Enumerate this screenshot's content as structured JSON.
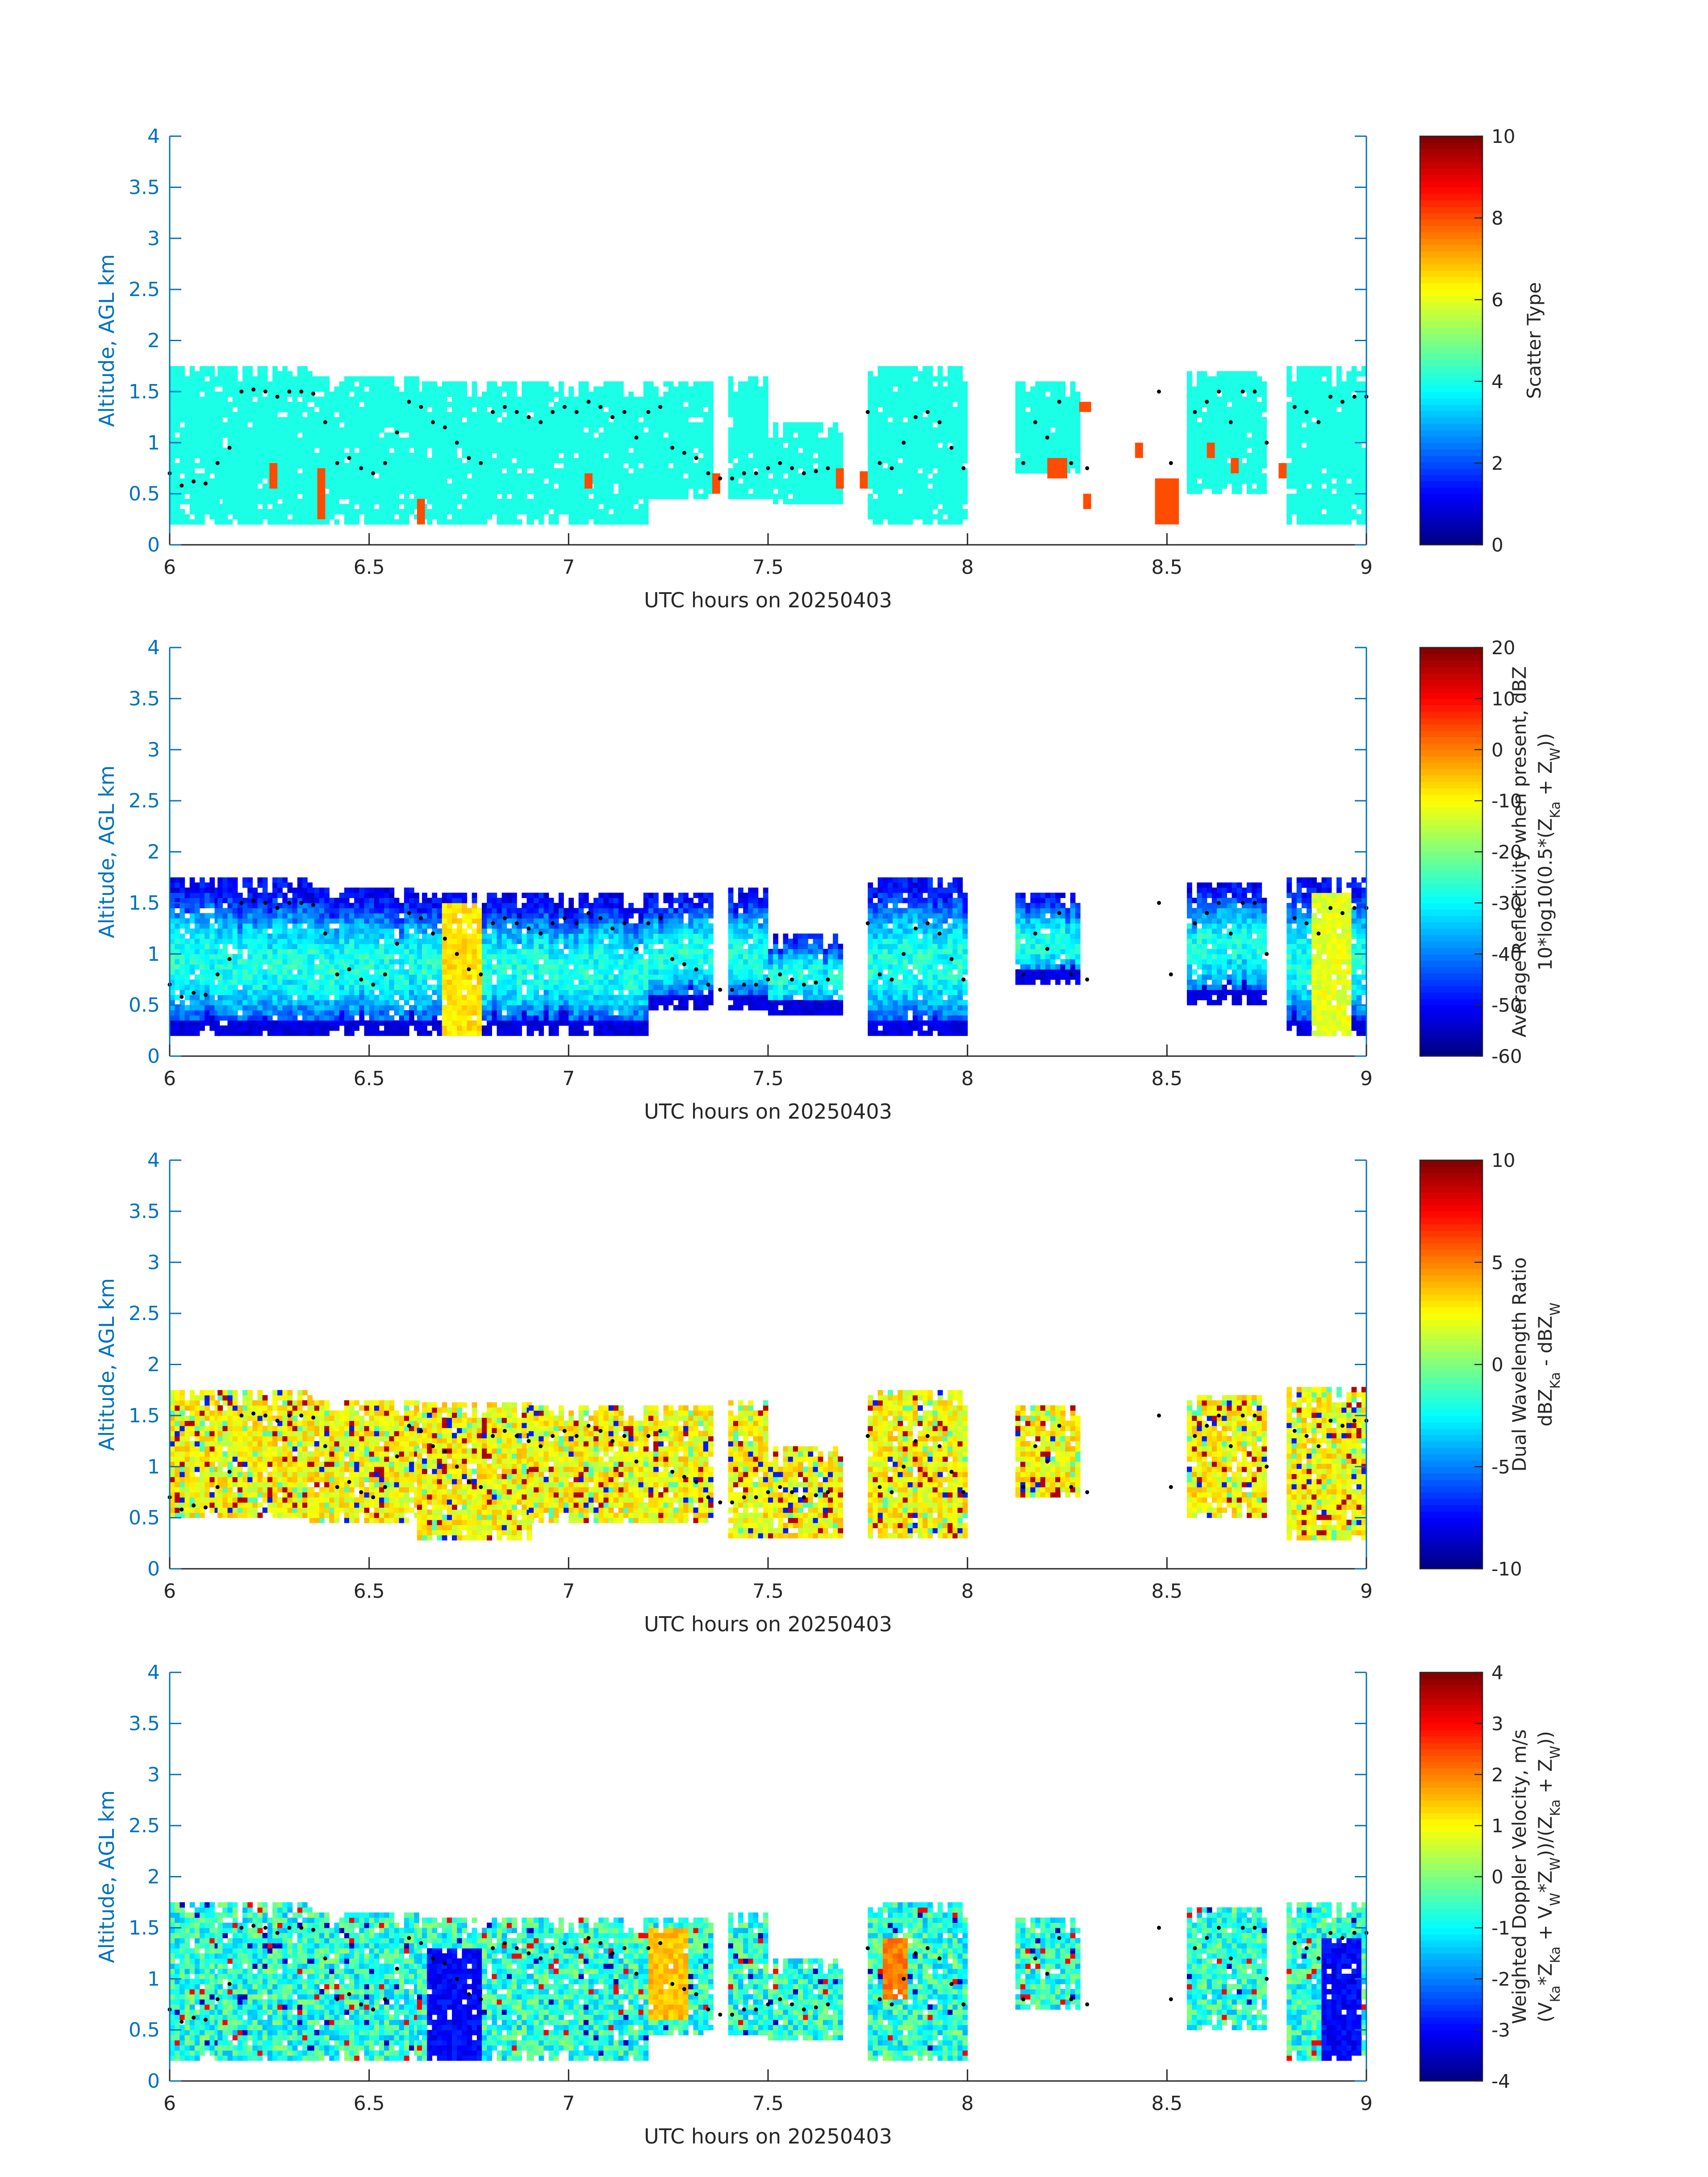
{
  "figure": {
    "date_label": "UTC hours on 20250403"
  },
  "chart_data": [
    {
      "type": "heatmap",
      "title": "",
      "xlabel": "UTC hours on 20250403",
      "ylabel": "Altitude, AGL km",
      "xlim": [
        6,
        9
      ],
      "ylim": [
        0,
        4
      ],
      "xticks": [
        "6",
        "6.5",
        "7",
        "7.5",
        "8",
        "8.5",
        "9"
      ],
      "yticks": [
        "0",
        "0.5",
        "1",
        "1.5",
        "2",
        "2.5",
        "3",
        "3.5",
        "4"
      ],
      "colorbar": {
        "label_lines": [
          "Scatter Type"
        ],
        "limits": [
          0,
          10
        ],
        "ticks": [
          "0",
          "2",
          "4",
          "6",
          "8",
          "10"
        ],
        "colormap": "jet"
      },
      "value_description": "Dominant scatter type 4 (cyan) throughout echo; type ~8 (red) in isolated lower cells",
      "echo_segments": [
        {
          "x": [
            6.0,
            6.12
          ],
          "base": 0.2,
          "top": 1.75
        },
        {
          "x": [
            6.12,
            6.35
          ],
          "base": 0.2,
          "top": 1.72
        },
        {
          "x": [
            6.35,
            6.62
          ],
          "base": 0.2,
          "top": 1.65
        },
        {
          "x": [
            6.62,
            6.9
          ],
          "base": 0.2,
          "top": 1.6
        },
        {
          "x": [
            6.9,
            7.2
          ],
          "base": 0.2,
          "top": 1.6
        },
        {
          "x": [
            7.2,
            7.36
          ],
          "base": 0.45,
          "top": 1.6
        },
        {
          "x": [
            7.4,
            7.5
          ],
          "base": 0.45,
          "top": 1.65
        },
        {
          "x": [
            7.5,
            7.68
          ],
          "base": 0.4,
          "top": 1.2
        },
        {
          "x": [
            7.75,
            8.0
          ],
          "base": 0.2,
          "top": 1.75
        },
        {
          "x": [
            8.12,
            8.28
          ],
          "base": 0.7,
          "top": 1.6
        },
        {
          "x": [
            8.55,
            8.75
          ],
          "base": 0.5,
          "top": 1.7
        },
        {
          "x": [
            8.8,
            9.0
          ],
          "base": 0.2,
          "top": 1.75
        }
      ],
      "secondary_cells": [
        {
          "x": [
            6.25,
            6.27
          ],
          "y": [
            0.55,
            0.8
          ],
          "value": 8
        },
        {
          "x": [
            6.37,
            6.39
          ],
          "y": [
            0.25,
            0.75
          ],
          "value": 8
        },
        {
          "x": [
            6.62,
            6.64
          ],
          "y": [
            0.2,
            0.45
          ],
          "value": 8
        },
        {
          "x": [
            7.04,
            7.06
          ],
          "y": [
            0.55,
            0.7
          ],
          "value": 8
        },
        {
          "x": [
            7.36,
            7.38
          ],
          "y": [
            0.5,
            0.7
          ],
          "value": 8
        },
        {
          "x": [
            7.67,
            7.69
          ],
          "y": [
            0.55,
            0.75
          ],
          "value": 8
        },
        {
          "x": [
            7.73,
            7.75
          ],
          "y": [
            0.55,
            0.72
          ],
          "value": 8
        },
        {
          "x": [
            8.2,
            8.25
          ],
          "y": [
            0.65,
            0.85
          ],
          "value": 8
        },
        {
          "x": [
            8.28,
            8.31
          ],
          "y": [
            1.3,
            1.4
          ],
          "value": 8
        },
        {
          "x": [
            8.29,
            8.31
          ],
          "y": [
            0.35,
            0.5
          ],
          "value": 8
        },
        {
          "x": [
            8.42,
            8.44
          ],
          "y": [
            0.85,
            1.0
          ],
          "value": 8
        },
        {
          "x": [
            8.47,
            8.53
          ],
          "y": [
            0.2,
            0.65
          ],
          "value": 8
        },
        {
          "x": [
            8.6,
            8.62
          ],
          "y": [
            0.85,
            1.0
          ],
          "value": 8
        },
        {
          "x": [
            8.66,
            8.68
          ],
          "y": [
            0.7,
            0.85
          ],
          "value": 8
        },
        {
          "x": [
            8.78,
            8.8
          ],
          "y": [
            0.65,
            0.8
          ],
          "value": 8
        }
      ]
    },
    {
      "type": "heatmap",
      "title": "",
      "xlabel": "UTC hours on 20250403",
      "ylabel": "Altitude, AGL km",
      "xlim": [
        6,
        9
      ],
      "ylim": [
        0,
        4
      ],
      "xticks": [
        "6",
        "6.5",
        "7",
        "7.5",
        "8",
        "8.5",
        "9"
      ],
      "yticks": [
        "0",
        "0.5",
        "1",
        "1.5",
        "2",
        "2.5",
        "3",
        "3.5",
        "4"
      ],
      "colorbar": {
        "label_lines": [
          "Average Reflectivity when present, dBZ",
          "10*log10(0.5*(Z",
          "Ka",
          " + Z",
          "W",
          "))"
        ],
        "limits": [
          -60,
          20
        ],
        "ticks": [
          "-60",
          "-50",
          "-40",
          "-30",
          "-20",
          "-10",
          "0",
          "10",
          "20"
        ],
        "colormap": "jet"
      },
      "value_description": "Reflectivity mostly -50 to -25 dBZ, peaks near -5 dBZ around 6.72 and 8.9 h",
      "echo_segments": [
        {
          "x": [
            6.0,
            6.12
          ],
          "base": 0.2,
          "top": 1.75
        },
        {
          "x": [
            6.12,
            6.35
          ],
          "base": 0.2,
          "top": 1.72
        },
        {
          "x": [
            6.35,
            6.62
          ],
          "base": 0.2,
          "top": 1.65
        },
        {
          "x": [
            6.62,
            6.9
          ],
          "base": 0.2,
          "top": 1.6
        },
        {
          "x": [
            6.9,
            7.2
          ],
          "base": 0.2,
          "top": 1.6
        },
        {
          "x": [
            7.2,
            7.36
          ],
          "base": 0.45,
          "top": 1.6
        },
        {
          "x": [
            7.4,
            7.5
          ],
          "base": 0.45,
          "top": 1.65
        },
        {
          "x": [
            7.5,
            7.68
          ],
          "base": 0.4,
          "top": 1.2
        },
        {
          "x": [
            7.75,
            8.0
          ],
          "base": 0.2,
          "top": 1.75
        },
        {
          "x": [
            8.12,
            8.28
          ],
          "base": 0.7,
          "top": 1.6
        },
        {
          "x": [
            8.55,
            8.75
          ],
          "base": 0.5,
          "top": 1.7
        },
        {
          "x": [
            8.8,
            9.0
          ],
          "base": 0.2,
          "top": 1.75
        }
      ],
      "hotspots": [
        {
          "x": [
            6.68,
            6.78
          ],
          "y": [
            0.2,
            1.5
          ],
          "value": -8
        },
        {
          "x": [
            8.85,
            8.95
          ],
          "y": [
            0.2,
            1.6
          ],
          "value": -12
        }
      ]
    },
    {
      "type": "heatmap",
      "title": "",
      "xlabel": "UTC hours on 20250403",
      "ylabel": "Altitude, AGL km",
      "xlim": [
        6,
        9
      ],
      "ylim": [
        0,
        4
      ],
      "xticks": [
        "6",
        "6.5",
        "7",
        "7.5",
        "8",
        "8.5",
        "9"
      ],
      "yticks": [
        "0",
        "0.5",
        "1",
        "1.5",
        "2",
        "2.5",
        "3",
        "3.5",
        "4"
      ],
      "colorbar": {
        "label_lines": [
          "Dual Wavelength Ratio",
          "dBZ",
          "Ka",
          " - dBZ",
          "W"
        ],
        "limits": [
          -10,
          10
        ],
        "ticks": [
          "-10",
          "-5",
          "0",
          "5",
          "10"
        ],
        "colormap": "jet"
      },
      "value_description": "DWR mostly 1 to 4 dB, scattered pixels to 8 dB and a few negative",
      "echo_segments": [
        {
          "x": [
            6.0,
            6.12
          ],
          "base": 0.5,
          "top": 1.75
        },
        {
          "x": [
            6.12,
            6.35
          ],
          "base": 0.5,
          "top": 1.72
        },
        {
          "x": [
            6.35,
            6.62
          ],
          "base": 0.45,
          "top": 1.65
        },
        {
          "x": [
            6.62,
            6.9
          ],
          "base": 0.28,
          "top": 1.6
        },
        {
          "x": [
            6.9,
            7.2
          ],
          "base": 0.45,
          "top": 1.6
        },
        {
          "x": [
            7.2,
            7.36
          ],
          "base": 0.45,
          "top": 1.6
        },
        {
          "x": [
            7.4,
            7.5
          ],
          "base": 0.3,
          "top": 1.65
        },
        {
          "x": [
            7.5,
            7.68
          ],
          "base": 0.3,
          "top": 1.2
        },
        {
          "x": [
            7.75,
            8.0
          ],
          "base": 0.3,
          "top": 1.75
        },
        {
          "x": [
            8.12,
            8.28
          ],
          "base": 0.7,
          "top": 1.6
        },
        {
          "x": [
            8.55,
            8.75
          ],
          "base": 0.5,
          "top": 1.7
        },
        {
          "x": [
            8.8,
            9.0
          ],
          "base": 0.28,
          "top": 1.75
        }
      ]
    },
    {
      "type": "heatmap",
      "title": "",
      "xlabel": "UTC hours on 20250403",
      "ylabel": "Altitude, AGL km",
      "xlim": [
        6,
        9
      ],
      "ylim": [
        0,
        4
      ],
      "xticks": [
        "6",
        "6.5",
        "7",
        "7.5",
        "8",
        "8.5",
        "9"
      ],
      "yticks": [
        "0",
        "0.5",
        "1",
        "1.5",
        "2",
        "2.5",
        "3",
        "3.5",
        "4"
      ],
      "colorbar": {
        "label_lines": [
          "Weighted Doppler Velocity, m/s",
          "(V",
          "Ka",
          "*Z",
          "Ka",
          " + V",
          "W",
          "*Z",
          "W",
          "))/(Z",
          "Ka",
          " + Z",
          "W",
          "))"
        ],
        "limits": [
          -4,
          4
        ],
        "ticks": [
          "-4",
          "-3",
          "-2",
          "-1",
          "0",
          "1",
          "2",
          "3",
          "4"
        ],
        "colormap": "jet"
      },
      "value_description": "Velocity mostly -1.5 to 0.5 m/s; strong downward (-3 m/s) columns near 6.62-6.78 and 8.88-8.98 h; upward pockets near 7.2 and 7.8 h",
      "echo_segments": [
        {
          "x": [
            6.0,
            6.12
          ],
          "base": 0.2,
          "top": 1.75
        },
        {
          "x": [
            6.12,
            6.35
          ],
          "base": 0.2,
          "top": 1.72
        },
        {
          "x": [
            6.35,
            6.62
          ],
          "base": 0.2,
          "top": 1.65
        },
        {
          "x": [
            6.62,
            6.9
          ],
          "base": 0.2,
          "top": 1.6
        },
        {
          "x": [
            6.9,
            7.2
          ],
          "base": 0.2,
          "top": 1.6
        },
        {
          "x": [
            7.2,
            7.36
          ],
          "base": 0.45,
          "top": 1.6
        },
        {
          "x": [
            7.4,
            7.5
          ],
          "base": 0.45,
          "top": 1.65
        },
        {
          "x": [
            7.5,
            7.68
          ],
          "base": 0.4,
          "top": 1.2
        },
        {
          "x": [
            7.75,
            8.0
          ],
          "base": 0.2,
          "top": 1.75
        },
        {
          "x": [
            8.12,
            8.28
          ],
          "base": 0.7,
          "top": 1.6
        },
        {
          "x": [
            8.55,
            8.75
          ],
          "base": 0.5,
          "top": 1.7
        },
        {
          "x": [
            8.8,
            9.0
          ],
          "base": 0.2,
          "top": 1.75
        }
      ],
      "hotspots": [
        {
          "x": [
            6.64,
            6.78
          ],
          "y": [
            0.2,
            1.3
          ],
          "value": -3
        },
        {
          "x": [
            8.88,
            8.98
          ],
          "y": [
            0.2,
            1.4
          ],
          "value": -3
        },
        {
          "x": [
            7.2,
            7.3
          ],
          "y": [
            0.6,
            1.5
          ],
          "value": 1.5
        },
        {
          "x": [
            7.78,
            7.85
          ],
          "y": [
            0.8,
            1.4
          ],
          "value": 2
        }
      ]
    }
  ],
  "overlay_points": {
    "description": "Black dot markers tracing a layer height",
    "x": [
      6.0,
      6.03,
      6.06,
      6.09,
      6.12,
      6.15,
      6.18,
      6.21,
      6.24,
      6.27,
      6.3,
      6.33,
      6.36,
      6.39,
      6.42,
      6.45,
      6.48,
      6.51,
      6.54,
      6.57,
      6.6,
      6.63,
      6.66,
      6.69,
      6.72,
      6.75,
      6.78,
      6.81,
      6.84,
      6.87,
      6.9,
      6.93,
      6.96,
      6.99,
      7.02,
      7.05,
      7.08,
      7.11,
      7.14,
      7.17,
      7.2,
      7.23,
      7.26,
      7.29,
      7.32,
      7.35,
      7.38,
      7.41,
      7.44,
      7.47,
      7.5,
      7.53,
      7.56,
      7.59,
      7.62,
      7.65,
      7.75,
      7.78,
      7.81,
      7.84,
      7.87,
      7.9,
      7.93,
      7.96,
      7.99,
      8.14,
      8.17,
      8.2,
      8.23,
      8.26,
      8.3,
      8.48,
      8.51,
      8.57,
      8.6,
      8.63,
      8.66,
      8.69,
      8.72,
      8.75,
      8.82,
      8.85,
      8.88,
      8.91,
      8.94,
      8.97,
      9.0
    ],
    "y": [
      0.7,
      0.58,
      0.62,
      0.6,
      0.8,
      0.95,
      1.5,
      1.52,
      1.5,
      1.45,
      1.5,
      1.5,
      1.48,
      1.2,
      0.8,
      0.85,
      0.75,
      0.7,
      0.8,
      1.1,
      1.4,
      1.35,
      1.2,
      1.15,
      1.0,
      0.85,
      0.8,
      1.3,
      1.35,
      1.3,
      1.25,
      1.2,
      1.3,
      1.35,
      1.3,
      1.4,
      1.35,
      1.25,
      1.3,
      1.05,
      1.3,
      1.35,
      0.95,
      0.9,
      0.85,
      0.7,
      0.65,
      0.65,
      0.7,
      0.7,
      0.75,
      0.8,
      0.75,
      0.7,
      0.72,
      0.75,
      1.3,
      0.8,
      0.75,
      1.0,
      1.25,
      1.3,
      1.2,
      0.95,
      0.75,
      0.8,
      1.2,
      1.05,
      1.4,
      0.8,
      0.75,
      1.5,
      0.8,
      1.3,
      1.4,
      1.5,
      1.2,
      1.5,
      1.5,
      1.0,
      1.35,
      1.3,
      1.2,
      1.45,
      1.4,
      1.45,
      1.45
    ]
  }
}
